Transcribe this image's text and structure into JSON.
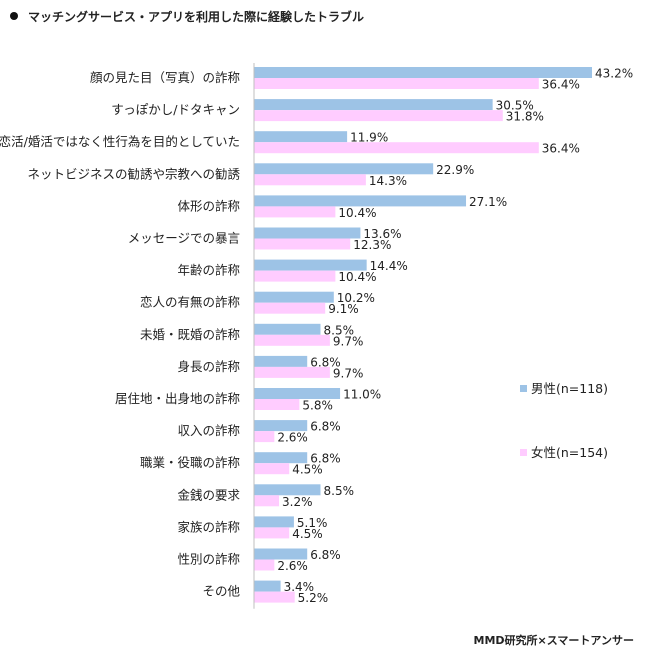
{
  "title": "マッチングサービス・アプリを利用した際に経験したトラブル",
  "credit": "MMD研究所×スマートアンサー",
  "colors": {
    "male": "#9dc3e6",
    "female": "#ffccff"
  },
  "chart_data": {
    "type": "bar",
    "orientation": "horizontal",
    "categories": [
      "顔の見た目（写真）の詐称",
      "すっぽかし/ドタキャン",
      "恋活/婚活ではなく性行為を目的としていた",
      "ネットビジネスの勧誘や宗教への勧誘",
      "体形の詐称",
      "メッセージでの暴言",
      "年齢の詐称",
      "恋人の有無の詐称",
      "未婚・既婚の詐称",
      "身長の詐称",
      "居住地・出身地の詐称",
      "収入の詐称",
      "職業・役職の詐称",
      "金銭の要求",
      "家族の詐称",
      "性別の詐称",
      "その他"
    ],
    "series": [
      {
        "name": "男性(n=118)",
        "values": [
          43.2,
          30.5,
          11.9,
          22.9,
          27.1,
          13.6,
          14.4,
          10.2,
          8.5,
          6.8,
          11.0,
          6.8,
          6.8,
          8.5,
          5.1,
          6.8,
          3.4
        ]
      },
      {
        "name": "女性(n=154)",
        "values": [
          36.4,
          31.8,
          36.4,
          14.3,
          10.4,
          12.3,
          10.4,
          9.1,
          9.7,
          9.7,
          5.8,
          2.6,
          4.5,
          3.2,
          4.5,
          2.6,
          5.2
        ]
      }
    ],
    "value_suffix": "%",
    "xlim": [
      0,
      43.2
    ],
    "legend_position": "right",
    "grid": false
  }
}
